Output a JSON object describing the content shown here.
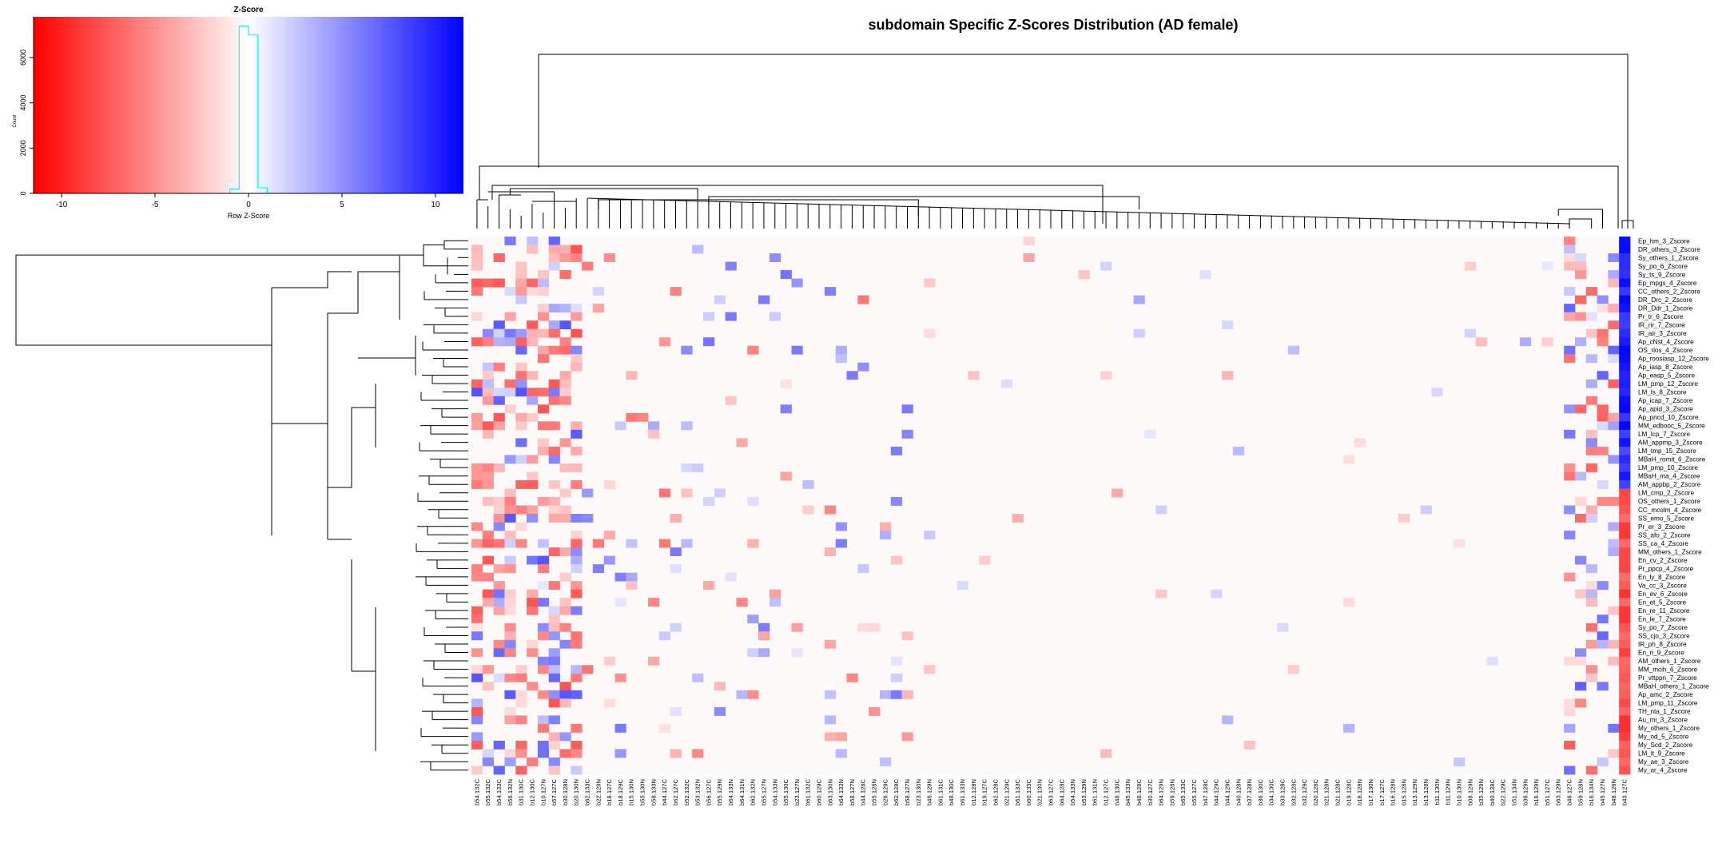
{
  "chart_data": [
    {
      "type": "heatmap",
      "title": "subdomain Specific Z-Scores Distribution (AD female)",
      "rows": [
        "Ep_hm_3_Zscore",
        "DR_others_3_Zscore",
        "Sy_others_1_Zscore",
        "Sy_po_6_Zscore",
        "Sy_ts_9_Zscore",
        "Ep_mpgs_4_Zscore",
        "CC_others_2_Zscore",
        "DR_Drc_2_Zscore",
        "DR_Ddr_1_Zscore",
        "Pr_tr_6_Zscore",
        "IR_rir_7_Zscore",
        "IR_air_3_Zscore",
        "Ap_cNst_4_Zscore",
        "OS_rlos_4_Zscore",
        "Ap_roosiasp_12_Zscore",
        "Ap_iasp_8_Zscore",
        "Ap_easp_5_Zscore",
        "LM_pmp_12_Zscore",
        "LM_ls_8_Zscore",
        "Ap_icap_7_Zscore",
        "Ap_apid_3_Zscore",
        "Ap_pncd_10_Zscore",
        "MM_edbooc_5_Zscore",
        "LM_lcp_7_Zscore",
        "AM_appmp_3_Zscore",
        "LM_tmp_15_Zscore",
        "MBaH_romit_6_Zscore",
        "LM_pmp_10_Zscore",
        "MBaH_ma_4_Zscore",
        "AM_appbp_2_Zscore",
        "LM_cmp_2_Zscore",
        "OS_others_1_Zscore",
        "CC_mcolm_4_Zscore",
        "SS_emo_5_Zscore",
        "Pr_er_3_Zscore",
        "SS_afo_2_Zscore",
        "SS_ca_4_Zscore",
        "MM_others_1_Zscore",
        "En_cv_2_Zscore",
        "Pr_ppcp_4_Zscore",
        "En_ly_8_Zscore",
        "Va_cc_3_Zscore",
        "En_ev_6_Zscore",
        "En_et_5_Zscore",
        "En_re_11_Zscore",
        "En_le_7_Zscore",
        "Sy_po_7_Zscore",
        "SS_cjo_3_Zscore",
        "IR_ph_8_Zscore",
        "En_ri_9_Zscore",
        "AM_others_1_Zscore",
        "MM_mcih_6_Zscore",
        "Pr_vttppn_7_Zscore",
        "MBaH_others_1_Zscore",
        "Ap_amc_2_Zscore",
        "LM_pmp_11_Zscore",
        "TH_nta_1_Zscore",
        "Au_mi_3_Zscore",
        "My_others_1_Zscore",
        "My_od_5_Zscore",
        "My_Scd_2_Zscore",
        "LM_lt_9_Zscore",
        "My_ae_3_Zscore",
        "My_ar_4_Zscore"
      ],
      "columns": [
        "b54.132C",
        "b55.132C",
        "b54.133C",
        "b56.132N",
        "b31.130C",
        "b12.130C",
        "b10.127N",
        "b57.127C",
        "b30.128N",
        "b20.130N",
        "b62.133C",
        "b22.129N",
        "b18.127C",
        "b18.129C",
        "b15.130N",
        "b55.130N",
        "b58.133N",
        "b44.127C",
        "b62.127C",
        "b52.132C",
        "b53.132N",
        "b56.127C",
        "b55.129N",
        "b64.133N",
        "b64.131N",
        "b62.132N",
        "b55.127N",
        "b54.133N",
        "b55.130C",
        "b23.127N",
        "b61.132C",
        "b60.129C",
        "b63.130N",
        "b64.133N",
        "b58.127N",
        "b44.128C",
        "b55.128N",
        "b26.129C",
        "b62.128C",
        "b58.127N",
        "b23.130N",
        "b46.129N",
        "b61.131C",
        "b48.130C",
        "b61.133N",
        "b12.128N",
        "b19.127C",
        "b62.128C",
        "b21.129C",
        "b61.133C",
        "b60.133C",
        "b21.130N",
        "b63.127C",
        "b64.128C",
        "b54.133N",
        "b53.129N",
        "b61.131N",
        "b12.127C",
        "b48.130C",
        "b45.133N",
        "b48.128C",
        "b30.127C",
        "b64.129N",
        "b59.128N",
        "b65.133C",
        "b55.127C",
        "b47.128C",
        "b44.129C",
        "b44.129C",
        "b40.128N",
        "b37.128N",
        "b36.130C",
        "b34.130C",
        "b33.128C",
        "b32.128C",
        "b32.129C",
        "b20.128C",
        "b21.128N",
        "b21.128C",
        "b19.128C",
        "b18.128N",
        "b17.130N",
        "b17.127C",
        "b16.128N",
        "b15.128N",
        "b13.129N",
        "b13.128N",
        "b11.130N",
        "b11.129N",
        "b10.130N",
        "b08.129N",
        "b35.129N",
        "b40.128C",
        "b22.129C",
        "b51.134N",
        "b36.129N",
        "b16.129N",
        "b51.127C",
        "b63.129N",
        "b46.127C",
        "b59.128N",
        "b16.134N",
        "b45.127N",
        "b48.126N",
        "b43.127C"
      ],
      "color_scale": {
        "low": "#ff0000",
        "mid": "#ffffff",
        "high": "#0000ff",
        "label": "Row Z-Score"
      },
      "dendrograms": {
        "rows": true,
        "columns": true
      }
    },
    {
      "type": "bar",
      "title": "Z-Score",
      "xlabel": "Row Z-Score",
      "ylabel": "Count",
      "xlim": [
        -11.5,
        11.5
      ],
      "ylim": [
        0,
        7800
      ],
      "x_ticks": [
        -10,
        -5,
        0,
        5,
        10
      ],
      "y_ticks": [
        0,
        2000,
        4000,
        6000
      ],
      "histogram": {
        "bin_centers": [
          -0.75,
          -0.25,
          0.25,
          0.75
        ],
        "counts": [
          200,
          7400,
          7000,
          250
        ]
      }
    }
  ]
}
